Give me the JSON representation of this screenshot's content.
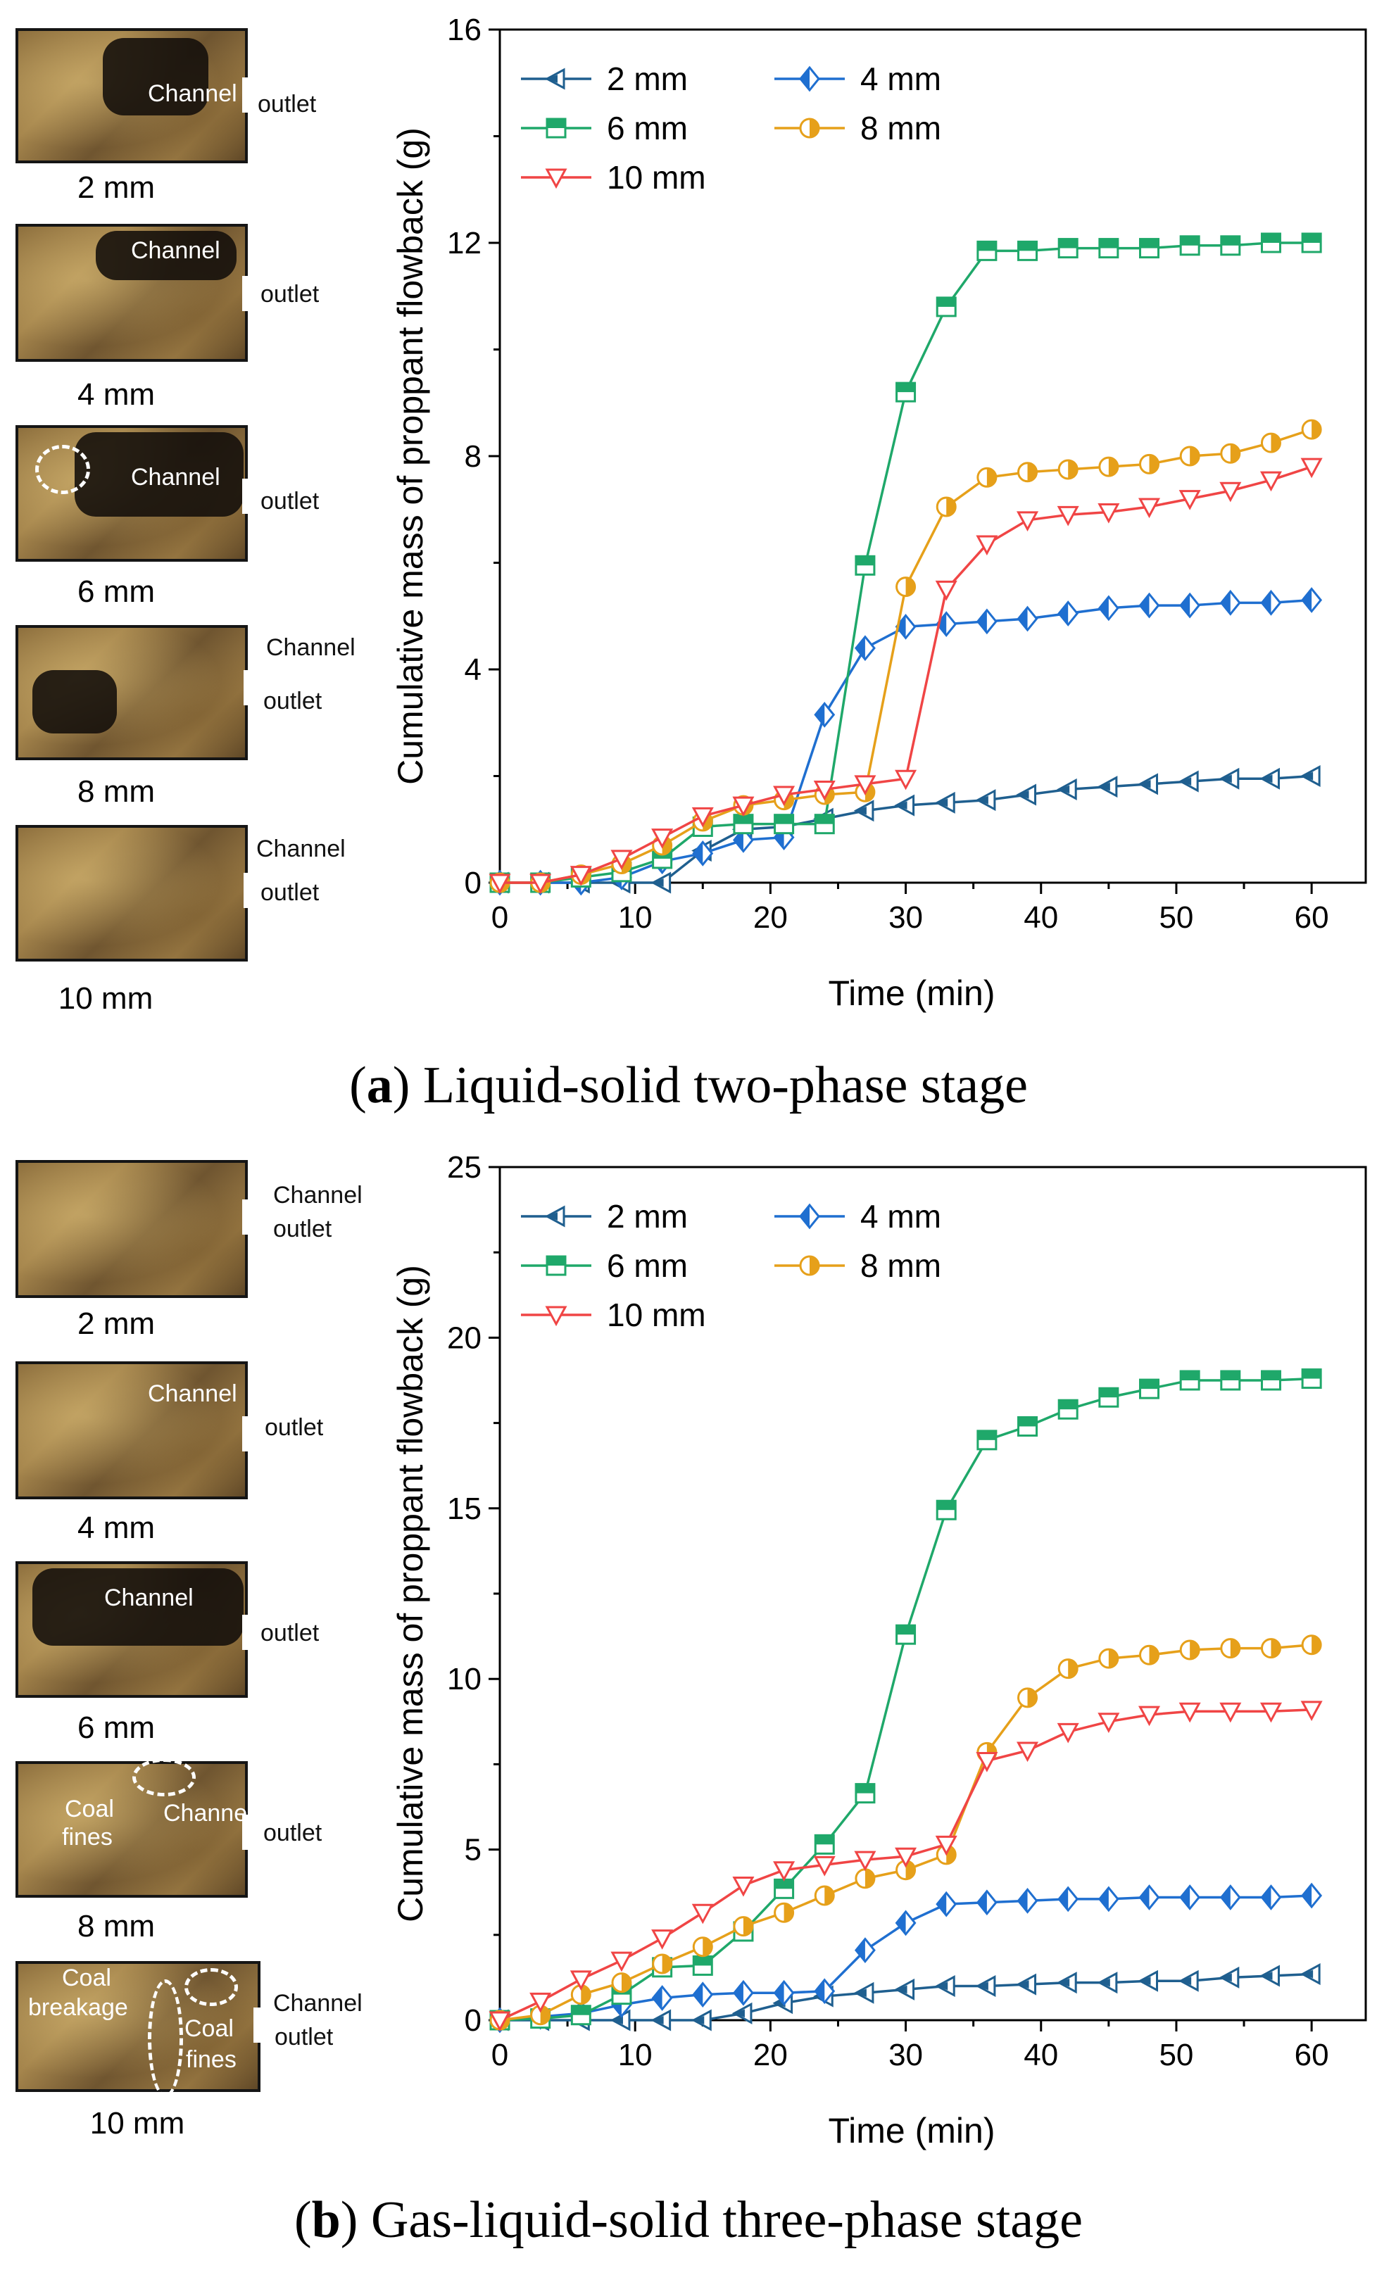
{
  "panels": [
    {
      "id": "a",
      "caption_letter": "a",
      "caption_text": " Liquid-solid two-phase stage",
      "photo_labels": [
        "2 mm",
        "4 mm",
        "6 mm",
        "8 mm",
        "10 mm"
      ],
      "annotations": {
        "channel": "Channel",
        "outlet": "outlet"
      }
    },
    {
      "id": "b",
      "caption_letter": "b",
      "caption_text": " Gas-liquid-solid three-phase stage",
      "photo_labels": [
        "2 mm",
        "4 mm",
        "6 mm",
        "8 mm",
        "10 mm"
      ],
      "annotations": {
        "channel": "Channel",
        "outlet": "outlet",
        "coal": "Coal",
        "fines": "fines",
        "breakage": "breakage"
      }
    }
  ],
  "chart_data": [
    {
      "type": "line",
      "title": "",
      "xlabel": "Time (min)",
      "ylabel": "Cumulative mass of proppant flowback (g)",
      "xlim": [
        0,
        64
      ],
      "ylim": [
        0,
        16
      ],
      "xticks": [
        0,
        10,
        20,
        30,
        40,
        50,
        60
      ],
      "yticks": [
        0,
        4,
        8,
        12,
        16
      ],
      "x": [
        0,
        3,
        6,
        9,
        12,
        15,
        18,
        21,
        24,
        27,
        30,
        33,
        36,
        39,
        42,
        45,
        48,
        51,
        54,
        57,
        60
      ],
      "series": [
        {
          "name": "2 mm",
          "color": "#1f5f8f",
          "marker": "tri-left",
          "values": [
            0,
            0,
            0,
            0,
            0,
            0.6,
            1.0,
            1.05,
            1.2,
            1.35,
            1.45,
            1.5,
            1.55,
            1.65,
            1.75,
            1.8,
            1.85,
            1.9,
            1.95,
            1.95,
            2.0
          ]
        },
        {
          "name": "4 mm",
          "color": "#1f6fd0",
          "marker": "diamond",
          "values": [
            0,
            0,
            0,
            0.1,
            0.4,
            0.55,
            0.8,
            0.85,
            3.15,
            4.4,
            4.8,
            4.85,
            4.9,
            4.95,
            5.05,
            5.15,
            5.2,
            5.2,
            5.25,
            5.25,
            5.3
          ]
        },
        {
          "name": "6 mm",
          "color": "#1fa86a",
          "marker": "square",
          "values": [
            0,
            0,
            0.1,
            0.2,
            0.45,
            1.05,
            1.1,
            1.1,
            1.1,
            5.95,
            9.2,
            10.8,
            11.85,
            11.85,
            11.9,
            11.9,
            11.9,
            11.95,
            11.95,
            12.0,
            12.0
          ]
        },
        {
          "name": "8 mm",
          "color": "#e6a01a",
          "marker": "half-circle",
          "values": [
            0,
            0,
            0.15,
            0.35,
            0.7,
            1.15,
            1.45,
            1.55,
            1.65,
            1.7,
            5.55,
            7.05,
            7.6,
            7.7,
            7.75,
            7.8,
            7.85,
            8.0,
            8.05,
            8.25,
            8.5
          ]
        },
        {
          "name": "10 mm",
          "color": "#f04545",
          "marker": "tri-down",
          "values": [
            0,
            0,
            0.15,
            0.45,
            0.85,
            1.25,
            1.45,
            1.65,
            1.75,
            1.85,
            1.95,
            5.5,
            6.35,
            6.8,
            6.9,
            6.95,
            7.05,
            7.2,
            7.35,
            7.55,
            7.8
          ]
        }
      ]
    },
    {
      "type": "line",
      "title": "",
      "xlabel": "Time (min)",
      "ylabel": "Cumulative mass of proppant flowback (g)",
      "xlim": [
        0,
        64
      ],
      "ylim": [
        0,
        25
      ],
      "xticks": [
        0,
        10,
        20,
        30,
        40,
        50,
        60
      ],
      "yticks": [
        0,
        5,
        10,
        15,
        20,
        25
      ],
      "x": [
        0,
        3,
        6,
        9,
        12,
        15,
        18,
        21,
        24,
        27,
        30,
        33,
        36,
        39,
        42,
        45,
        48,
        51,
        54,
        57,
        60
      ],
      "series": [
        {
          "name": "2 mm",
          "color": "#1f5f8f",
          "marker": "tri-left",
          "values": [
            0,
            0,
            0,
            0,
            0,
            0,
            0.2,
            0.5,
            0.7,
            0.8,
            0.9,
            1.0,
            1.0,
            1.05,
            1.1,
            1.1,
            1.15,
            1.15,
            1.25,
            1.3,
            1.35
          ]
        },
        {
          "name": "4 mm",
          "color": "#1f6fd0",
          "marker": "diamond",
          "values": [
            0,
            0.1,
            0.2,
            0.45,
            0.65,
            0.75,
            0.8,
            0.8,
            0.85,
            2.05,
            2.85,
            3.4,
            3.45,
            3.5,
            3.55,
            3.55,
            3.6,
            3.6,
            3.6,
            3.6,
            3.65
          ]
        },
        {
          "name": "6 mm",
          "color": "#1fa86a",
          "marker": "square",
          "values": [
            0,
            0.05,
            0.15,
            0.75,
            1.55,
            1.6,
            2.6,
            3.85,
            5.15,
            6.65,
            11.3,
            14.95,
            17.0,
            17.4,
            17.9,
            18.25,
            18.5,
            18.75,
            18.75,
            18.75,
            18.8
          ]
        },
        {
          "name": "8 mm",
          "color": "#e6a01a",
          "marker": "half-circle",
          "values": [
            0,
            0.15,
            0.75,
            1.1,
            1.65,
            2.15,
            2.75,
            3.15,
            3.65,
            4.15,
            4.4,
            4.85,
            7.85,
            9.45,
            10.3,
            10.6,
            10.7,
            10.85,
            10.9,
            10.9,
            11.0
          ]
        },
        {
          "name": "10 mm",
          "color": "#f04545",
          "marker": "tri-down",
          "values": [
            0,
            0.55,
            1.2,
            1.75,
            2.4,
            3.15,
            3.95,
            4.4,
            4.55,
            4.7,
            4.8,
            5.15,
            7.6,
            7.9,
            8.45,
            8.75,
            8.95,
            9.05,
            9.05,
            9.05,
            9.1
          ]
        }
      ]
    }
  ]
}
